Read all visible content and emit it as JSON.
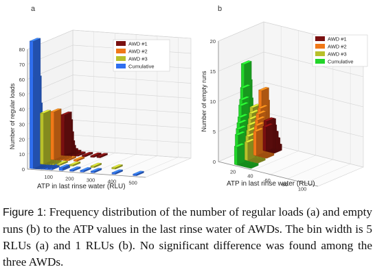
{
  "colors": {
    "awd1": "#7a1010",
    "awd2": "#f07818",
    "awd3": "#b8c02a",
    "cumulative_a": "#2f6ff0",
    "cumulative_b": "#22d42a"
  },
  "caption": {
    "label": "Figure 1:",
    "text": " Frequency distribution of the number of regular loads (a) and empty runs (b) to the ATP values in the last rinse water of AWDs. The bin width is 5 RLUs (a) and 1 RLUs (b). No significant difference was found among the three AWDs."
  },
  "chart_data": [
    {
      "panel_label": "a",
      "type": "bar",
      "subtype": "3d-bar",
      "xlabel": "ATP  in last rinse water (RLU)",
      "ylabel": "Number of regular loads",
      "zlim": [
        0,
        80
      ],
      "z_ticks": [
        "0",
        "10",
        "20",
        "30",
        "40",
        "50",
        "60",
        "70",
        "80"
      ],
      "x_ticks": [
        "100",
        "200",
        "300",
        "400",
        "500"
      ],
      "x_tick_values": [
        100,
        200,
        300,
        400,
        500
      ],
      "grid": true,
      "legend_position": "top-right",
      "series": [
        {
          "name": "AWD #1",
          "x": [
            10,
            15,
            20,
            25,
            30,
            40,
            55,
            75,
            110,
            150,
            180
          ],
          "values": [
            27,
            22,
            14,
            8,
            5,
            3,
            2,
            1,
            1,
            1,
            1
          ]
        },
        {
          "name": "AWD #2",
          "x": [
            10,
            15,
            20,
            25,
            30,
            35,
            45,
            60,
            80,
            120
          ],
          "values": [
            32,
            27,
            20,
            13,
            8,
            5,
            3,
            2,
            1,
            1
          ]
        },
        {
          "name": "AWD #3",
          "x": [
            10,
            15,
            20,
            25,
            30,
            35,
            45,
            60,
            90,
            150,
            250,
            350
          ],
          "values": [
            34,
            30,
            22,
            15,
            9,
            6,
            4,
            2,
            1,
            1,
            1,
            1
          ]
        },
        {
          "name": "Cumulative",
          "x": [
            10,
            15,
            20,
            25,
            30,
            35,
            40,
            50,
            60,
            80,
            100,
            150,
            200,
            250,
            300,
            400,
            500
          ],
          "values": [
            85,
            60,
            42,
            30,
            20,
            13,
            9,
            6,
            4,
            3,
            2,
            2,
            1,
            1,
            1,
            1,
            1
          ]
        }
      ]
    },
    {
      "panel_label": "b",
      "type": "bar",
      "subtype": "3d-bar",
      "xlabel": "ATP  in last rinse water (RLU)",
      "ylabel": "Number of empty runs",
      "zlim": [
        0,
        20
      ],
      "z_ticks": [
        "0",
        "5",
        "10",
        "15",
        "20"
      ],
      "x_ticks": [
        "20",
        "40",
        "60",
        "80",
        "100"
      ],
      "x_tick_values": [
        20,
        40,
        60,
        80,
        100
      ],
      "grid": true,
      "legend_position": "top-right",
      "series": [
        {
          "name": "AWD #1",
          "x": [
            15,
            16,
            17,
            18,
            19,
            20,
            21,
            22,
            23,
            24,
            25
          ],
          "values": [
            4,
            5,
            5,
            5,
            4,
            3,
            3,
            2,
            2,
            1,
            1
          ]
        },
        {
          "name": "AWD #2",
          "x": [
            16,
            17,
            18,
            19,
            20,
            21,
            22,
            23,
            24,
            25,
            26,
            27,
            28
          ],
          "values": [
            4,
            5,
            6,
            7,
            7,
            8,
            11,
            9,
            6,
            5,
            4,
            3,
            2
          ]
        },
        {
          "name": "AWD #3",
          "x": [
            18,
            19,
            20,
            21,
            22,
            23,
            24,
            25,
            26,
            27,
            28,
            29,
            30
          ],
          "values": [
            3,
            4,
            5,
            6,
            7,
            8,
            9,
            8,
            6,
            4,
            3,
            2,
            1
          ]
        },
        {
          "name": "Cumulative",
          "x": [
            18,
            19,
            20,
            21,
            22,
            23,
            24,
            25,
            26,
            27,
            28,
            29,
            30,
            31,
            32,
            33,
            34
          ],
          "values": [
            3,
            5,
            6,
            7,
            8,
            10,
            11,
            13,
            17,
            14,
            11,
            9,
            7,
            6,
            4,
            3,
            2
          ]
        }
      ]
    }
  ]
}
